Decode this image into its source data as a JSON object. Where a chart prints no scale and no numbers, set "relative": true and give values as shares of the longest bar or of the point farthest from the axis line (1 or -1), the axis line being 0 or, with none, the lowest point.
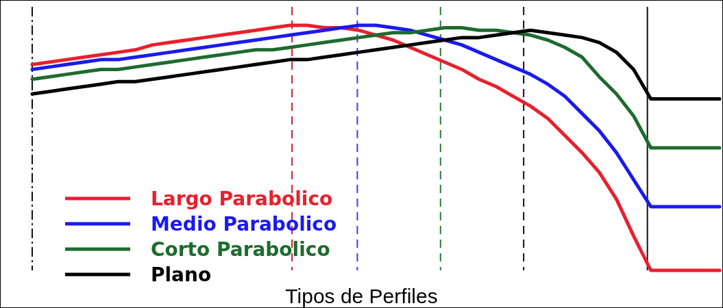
{
  "chart_data": {
    "type": "line",
    "title": "Tipos de Perfiles",
    "relative": true,
    "legend": "bottom left",
    "marker": "none",
    "line_style": "solid",
    "categories": [
      null,
      null,
      null,
      null,
      null,
      null,
      null,
      null,
      null,
      null,
      null,
      null,
      null,
      null,
      null,
      null,
      null,
      null,
      null,
      null,
      null,
      null,
      null,
      null,
      null,
      null,
      null,
      null,
      null,
      null,
      null,
      null,
      null,
      null,
      null,
      null,
      null,
      null,
      null,
      null,
      null
    ],
    "series": [
      {
        "name": "Largo Parabolico",
        "color": "#e8202e",
        "values": [
          0.84,
          0.85,
          0.86,
          0.87,
          0.88,
          0.89,
          0.9,
          0.92,
          0.93,
          0.94,
          0.95,
          0.96,
          0.97,
          0.98,
          0.99,
          1.0,
          1.0,
          0.99,
          0.99,
          0.98,
          0.96,
          0.94,
          0.91,
          0.88,
          0.85,
          0.82,
          0.78,
          0.75,
          0.71,
          0.67,
          0.62,
          0.55,
          0.48,
          0.4,
          0.29,
          0.14,
          0,
          0,
          0,
          0,
          0
        ]
      },
      {
        "name": "Medio Parabolico",
        "color": "#1a1aee",
        "values": [
          0.82,
          0.83,
          0.84,
          0.85,
          0.86,
          0.86,
          0.87,
          0.88,
          0.89,
          0.9,
          0.91,
          0.92,
          0.93,
          0.94,
          0.95,
          0.96,
          0.97,
          0.98,
          0.99,
          1.0,
          1.0,
          0.99,
          0.98,
          0.96,
          0.94,
          0.92,
          0.89,
          0.86,
          0.83,
          0.8,
          0.76,
          0.71,
          0.64,
          0.57,
          0.48,
          0.37,
          0.26,
          0.26,
          0.26,
          0.26,
          0.26
        ]
      },
      {
        "name": "Corto Parabolico",
        "color": "#1e6b2e",
        "values": [
          0.78,
          0.79,
          0.8,
          0.81,
          0.82,
          0.82,
          0.83,
          0.84,
          0.85,
          0.86,
          0.87,
          0.88,
          0.89,
          0.9,
          0.9,
          0.91,
          0.92,
          0.93,
          0.94,
          0.95,
          0.96,
          0.97,
          0.97,
          0.98,
          0.99,
          0.99,
          0.98,
          0.98,
          0.97,
          0.96,
          0.94,
          0.91,
          0.87,
          0.79,
          0.72,
          0.63,
          0.5,
          0.5,
          0.5,
          0.5,
          0.5
        ]
      },
      {
        "name": "Plano",
        "color": "#000000",
        "values": [
          0.72,
          0.73,
          0.74,
          0.75,
          0.76,
          0.77,
          0.77,
          0.78,
          0.79,
          0.8,
          0.81,
          0.82,
          0.83,
          0.84,
          0.85,
          0.86,
          0.86,
          0.87,
          0.88,
          0.89,
          0.9,
          0.91,
          0.92,
          0.93,
          0.94,
          0.95,
          0.95,
          0.96,
          0.97,
          0.98,
          0.97,
          0.96,
          0.95,
          0.93,
          0.89,
          0.82,
          0.7,
          0.7,
          0.7,
          0.7,
          0.7
        ]
      }
    ]
  }
}
